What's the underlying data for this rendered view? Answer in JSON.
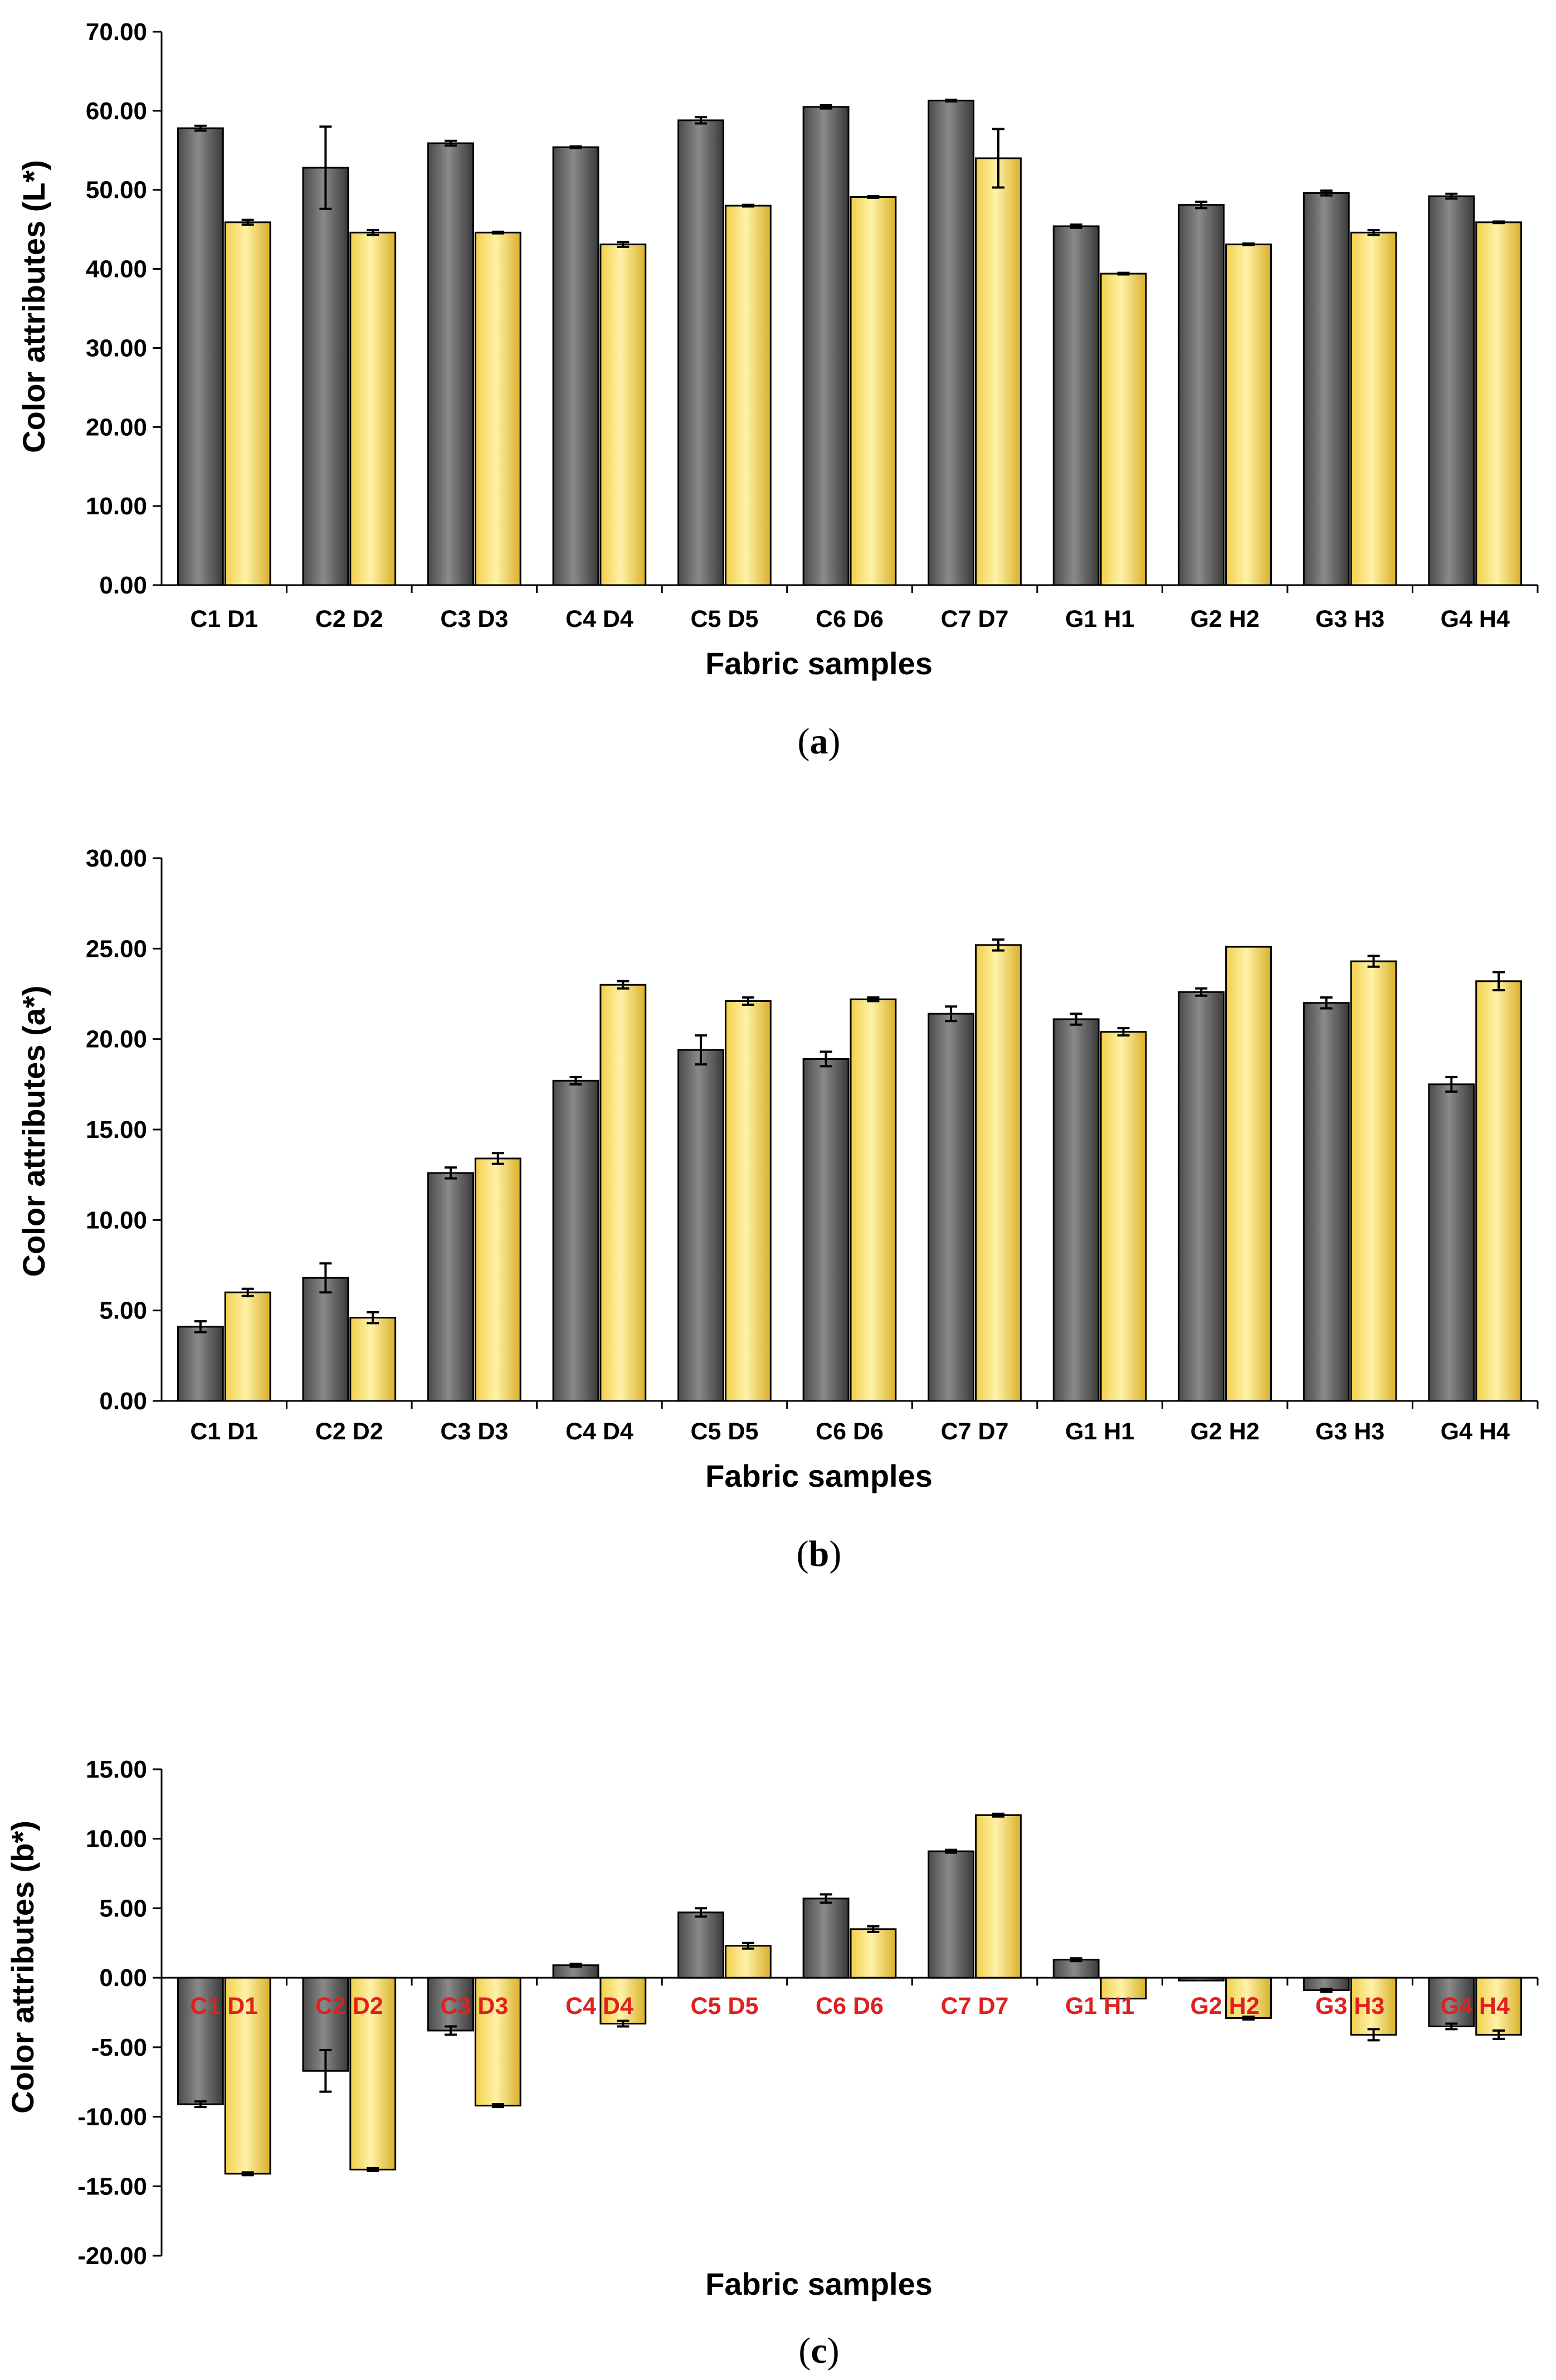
{
  "colors": {
    "series_gray": "#6b6b6b",
    "series_yellow": "#f5d95c",
    "red_label": "#e02020"
  },
  "chart_data": [
    {
      "id": "a",
      "type": "bar",
      "caption_open": "(",
      "caption_letter": "a",
      "caption_close": ")",
      "ylabel": "Color attributes (L*)",
      "xlabel": "Fabric samples",
      "ylim": [
        0,
        70
      ],
      "ytick_labels": [
        "0.00",
        "10.00",
        "20.00",
        "30.00",
        "40.00",
        "50.00",
        "60.00",
        "70.00"
      ],
      "ytick_values": [
        0,
        10,
        20,
        30,
        40,
        50,
        60,
        70
      ],
      "categories": [
        "C1 D1",
        "C2 D2",
        "C3 D3",
        "C4 D4",
        "C5 D5",
        "C6 D6",
        "C7 D7",
        "G1 H1",
        "G2 H2",
        "G3 H3",
        "G4 H4"
      ],
      "label_color": "black",
      "series": [
        {
          "name": "gray",
          "values": [
            57.8,
            52.8,
            55.9,
            55.4,
            58.8,
            60.5,
            61.3,
            45.4,
            48.1,
            49.6,
            49.2
          ],
          "errors": [
            0.3,
            5.2,
            0.3,
            0.1,
            0.4,
            0.2,
            0.1,
            0.2,
            0.4,
            0.3,
            0.3
          ]
        },
        {
          "name": "yellow",
          "values": [
            45.9,
            44.6,
            44.6,
            43.1,
            48.0,
            49.1,
            54.0,
            39.4,
            43.1,
            44.6,
            45.9
          ],
          "errors": [
            0.3,
            0.3,
            0.1,
            0.3,
            0.1,
            0.1,
            3.7,
            0.1,
            0.1,
            0.3,
            0.1
          ]
        }
      ]
    },
    {
      "id": "b",
      "type": "bar",
      "caption_open": "(",
      "caption_letter": "b",
      "caption_close": ")",
      "ylabel": "Color attributes (a*)",
      "xlabel": "Fabric samples",
      "ylim": [
        0,
        30
      ],
      "ytick_labels": [
        "0.00",
        "5.00",
        "10.00",
        "15.00",
        "20.00",
        "25.00",
        "30.00"
      ],
      "ytick_values": [
        0,
        5,
        10,
        15,
        20,
        25,
        30
      ],
      "categories": [
        "C1 D1",
        "C2 D2",
        "C3 D3",
        "C4 D4",
        "C5 D5",
        "C6 D6",
        "C7 D7",
        "G1 H1",
        "G2 H2",
        "G3 H3",
        "G4 H4"
      ],
      "label_color": "black",
      "series": [
        {
          "name": "gray",
          "values": [
            4.1,
            6.8,
            12.6,
            17.7,
            19.4,
            18.9,
            21.4,
            21.1,
            22.6,
            22.0,
            17.5
          ],
          "errors": [
            0.3,
            0.8,
            0.3,
            0.2,
            0.8,
            0.4,
            0.4,
            0.3,
            0.2,
            0.3,
            0.4
          ]
        },
        {
          "name": "yellow",
          "values": [
            6.0,
            4.6,
            13.4,
            23.0,
            22.1,
            22.2,
            25.2,
            20.4,
            25.1,
            24.3,
            23.2
          ],
          "errors": [
            0.2,
            0.3,
            0.3,
            0.2,
            0.2,
            0.1,
            0.3,
            0.2,
            0.0,
            0.3,
            0.5
          ]
        }
      ]
    },
    {
      "id": "c",
      "type": "bar",
      "caption_open": "(",
      "caption_letter": "c",
      "caption_close": ")",
      "ylabel": "Color attributes (b*)",
      "xlabel": "Fabric samples",
      "ylim": [
        -20,
        15
      ],
      "ytick_labels": [
        "-20.00",
        "-15.00",
        "-10.00",
        "-5.00",
        "0.00",
        "5.00",
        "10.00",
        "15.00"
      ],
      "ytick_values": [
        -20,
        -15,
        -10,
        -5,
        0,
        5,
        10,
        15
      ],
      "categories": [
        "C1 D1",
        "C2 D2",
        "C3 D3",
        "C4 D4",
        "C5 D5",
        "C6 D6",
        "C7 D7",
        "G1 H1",
        "G2 H2",
        "G3 H3",
        "G4 H4"
      ],
      "label_color": "red",
      "series": [
        {
          "name": "gray",
          "values": [
            -9.1,
            -6.7,
            -3.8,
            0.9,
            4.7,
            5.7,
            9.1,
            1.3,
            -0.2,
            -0.9,
            -3.5
          ],
          "errors": [
            0.2,
            1.5,
            0.3,
            0.1,
            0.3,
            0.3,
            0.1,
            0.1,
            0.0,
            0.1,
            0.2
          ]
        },
        {
          "name": "yellow",
          "values": [
            -14.1,
            -13.8,
            -9.2,
            -3.3,
            2.3,
            3.5,
            11.7,
            -1.5,
            -2.9,
            -4.1,
            -4.1
          ],
          "errors": [
            0.1,
            0.1,
            0.1,
            0.2,
            0.2,
            0.2,
            0.1,
            0.0,
            0.1,
            0.4,
            0.3
          ]
        }
      ]
    }
  ]
}
